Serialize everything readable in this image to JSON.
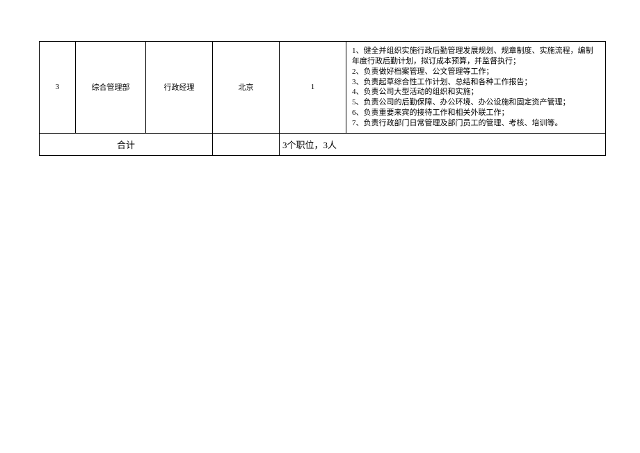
{
  "table": {
    "row": {
      "num": "3",
      "dept": "综合管理部",
      "position": "行政经理",
      "location": "北京",
      "count": "1",
      "desc": "1、健全并组织实施行政后勤管理发展规划、规章制度、实施流程，编制年度行政后勤计划，拟订成本预算，并监督执行；\n2、负责做好档案管理、公文管理等工作；\n3、负责起草综合性工作计划、总结和各种工作报告；\n4、负责公司大型活动的组织和实施；\n5、负责公司的后勤保障、办公环境、办公设施和固定资产管理；\n6、负责重要来宾的接待工作和相关外联工作；\n7、负责行政部门日常管理及部门员工的管理、考核、培训等。"
    },
    "summary": {
      "label": "合计",
      "text": "3个职位，3人"
    }
  },
  "colors": {
    "border": "#000000",
    "background": "#ffffff",
    "text": "#000000"
  }
}
